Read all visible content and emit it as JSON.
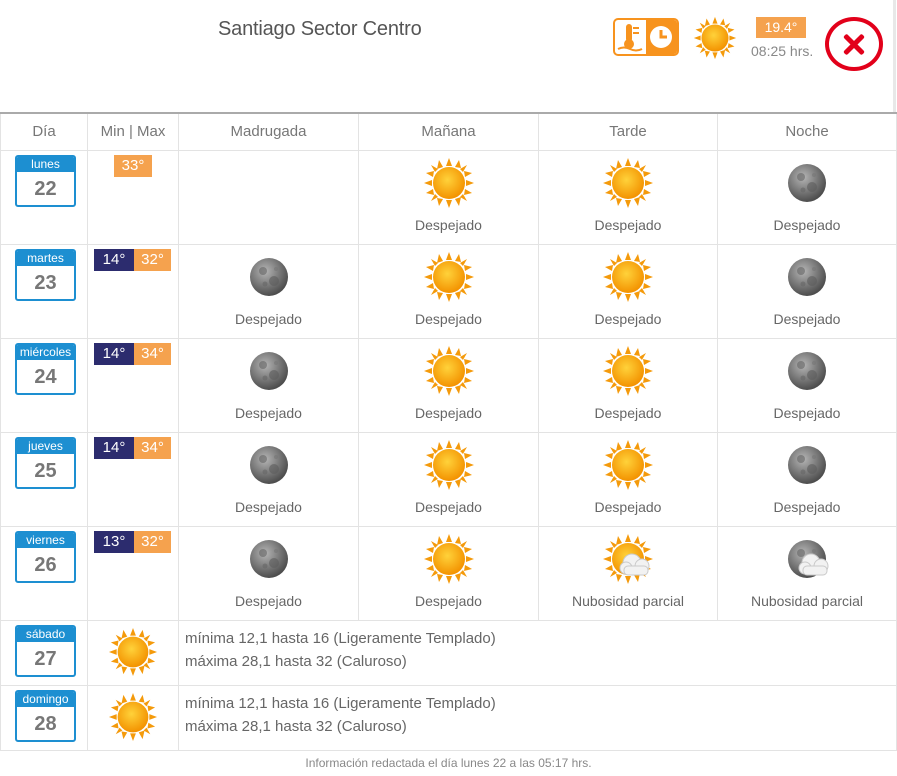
{
  "header": {
    "title": "Santiago Sector Centro",
    "current_temp": "19.4°",
    "current_time": "08:25 hrs.",
    "info_icon": "thermometer-clock-icon",
    "current_icon": "sun-icon",
    "close_icon": "close-icon"
  },
  "colors": {
    "accent": "#f7931e",
    "calendar": "#1d8fd1",
    "min": "#2c2c6e",
    "max": "#f5a24e",
    "close": "#e2001a"
  },
  "columns": {
    "day": "Día",
    "minmax": "Min | Max",
    "slot1": "Madrugada",
    "slot2": "Mañana",
    "slot3": "Tarde",
    "slot4": "Noche"
  },
  "days": [
    {
      "name": "lunes",
      "num": "22",
      "max": "33°",
      "slots": [
        null,
        {
          "icon": "sun",
          "label": "Despejado"
        },
        {
          "icon": "sun",
          "label": "Despejado"
        },
        {
          "icon": "moon",
          "label": "Despejado"
        }
      ]
    },
    {
      "name": "martes",
      "num": "23",
      "min": "14°",
      "max": "32°",
      "slots": [
        {
          "icon": "moon",
          "label": "Despejado"
        },
        {
          "icon": "sun",
          "label": "Despejado"
        },
        {
          "icon": "sun",
          "label": "Despejado"
        },
        {
          "icon": "moon",
          "label": "Despejado"
        }
      ]
    },
    {
      "name": "miércoles",
      "num": "24",
      "min": "14°",
      "max": "34°",
      "slots": [
        {
          "icon": "moon",
          "label": "Despejado"
        },
        {
          "icon": "sun",
          "label": "Despejado"
        },
        {
          "icon": "sun",
          "label": "Despejado"
        },
        {
          "icon": "moon",
          "label": "Despejado"
        }
      ]
    },
    {
      "name": "jueves",
      "num": "25",
      "min": "14°",
      "max": "34°",
      "slots": [
        {
          "icon": "moon",
          "label": "Despejado"
        },
        {
          "icon": "sun",
          "label": "Despejado"
        },
        {
          "icon": "sun",
          "label": "Despejado"
        },
        {
          "icon": "moon",
          "label": "Despejado"
        }
      ]
    },
    {
      "name": "viernes",
      "num": "26",
      "min": "13°",
      "max": "32°",
      "slots": [
        {
          "icon": "moon",
          "label": "Despejado"
        },
        {
          "icon": "sun",
          "label": "Despejado"
        },
        {
          "icon": "sun-cloud",
          "label": "Nubosidad parcial"
        },
        {
          "icon": "moon-cloud",
          "label": "Nubosidad parcial"
        }
      ]
    }
  ],
  "extended": [
    {
      "name": "sábado",
      "num": "27",
      "icon": "sun",
      "line1": "mínima 12,1 hasta 16 (Ligeramente Templado)",
      "line2": "máxima 28,1 hasta 32 (Caluroso)"
    },
    {
      "name": "domingo",
      "num": "28",
      "icon": "sun",
      "line1": "mínima 12,1 hasta 16 (Ligeramente Templado)",
      "line2": "máxima 28,1 hasta 32 (Caluroso)"
    }
  ],
  "footer": "Información redactada el día lunes 22 a las 05:17 hrs."
}
